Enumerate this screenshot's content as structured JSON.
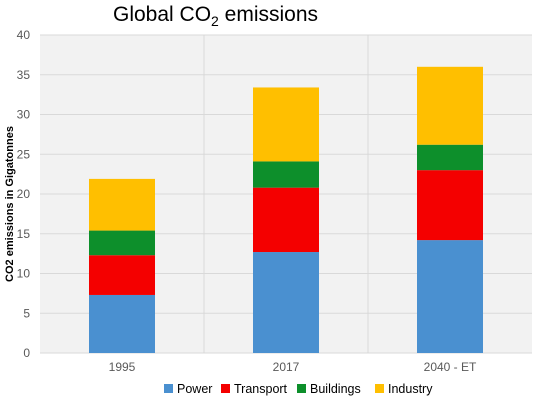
{
  "chart_data": {
    "type": "bar",
    "stacked": true,
    "title": "Global CO",
    "title_subscript": "2",
    "title_suffix": " emissions",
    "xlabel": "",
    "ylabel": "CO2 emissions in Gigatonnes",
    "ylim": [
      0,
      40
    ],
    "yticks": [
      "0",
      "5",
      "10",
      "15",
      "20",
      "25",
      "30",
      "35",
      "40"
    ],
    "categories": [
      "1995",
      "2017",
      "2040 - ET"
    ],
    "grid": true,
    "legend_position": "bottom",
    "series": [
      {
        "name": "Power",
        "color": "#4a90d0",
        "values": [
          7.3,
          12.7,
          14.2
        ]
      },
      {
        "name": "Transport",
        "color": "#f40000",
        "values": [
          5.0,
          8.1,
          8.8
        ]
      },
      {
        "name": "Buildings",
        "color": "#0d8f2b",
        "values": [
          3.1,
          3.3,
          3.2
        ]
      },
      {
        "name": "Industry",
        "color": "#ffbf00",
        "values": [
          6.5,
          9.3,
          9.8
        ]
      }
    ]
  }
}
